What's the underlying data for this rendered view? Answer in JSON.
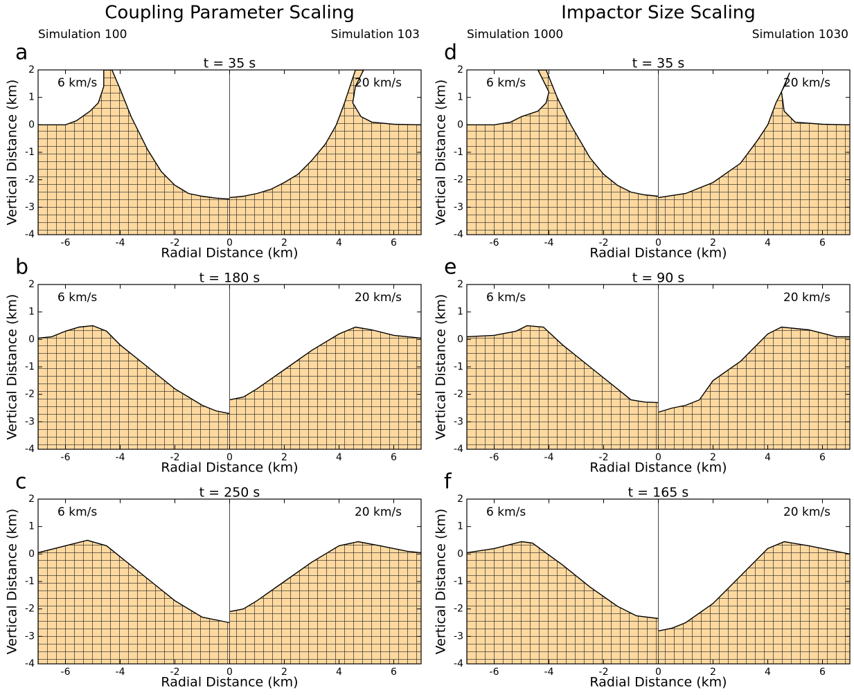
{
  "headings": [
    {
      "title": "Coupling Parameter Scaling",
      "left": "Simulation 100",
      "right": "Simulation 103"
    },
    {
      "title": "Impactor Size Scaling",
      "left": "Simulation 1000",
      "right": "Simulation 1030"
    }
  ],
  "chart_data": [
    {
      "type": "area",
      "panel": "a",
      "title": "t = 35 s",
      "xlabel": "Radial Distance (km)",
      "ylabel": "Vertical Distance (km)",
      "annotations": [
        "6 km/s",
        "20 km/s"
      ],
      "xlim": [
        -7,
        7
      ],
      "ylim": [
        -4,
        2
      ],
      "xticks": [
        -6,
        -4,
        -2,
        0,
        2,
        4,
        6
      ],
      "yticks": [
        -4,
        -3,
        -2,
        -1,
        0,
        1,
        2
      ],
      "series": [
        {
          "color": "#fdd9a0",
          "x": [
            -7,
            -6,
            -5.6,
            -5.1,
            -4.8,
            -4.6,
            -4.6,
            -4.3,
            -4.0,
            -3.6,
            -3.0,
            -2.5,
            -2.0,
            -1.5,
            -1.0,
            -0.5,
            0
          ],
          "values": [
            0,
            0,
            0.15,
            0.5,
            0.8,
            1.4,
            2.0,
            2.0,
            1.3,
            0.3,
            -0.9,
            -1.7,
            -2.2,
            -2.5,
            -2.6,
            -2.67,
            -2.7
          ]
        },
        {
          "color": "#fdd9a0",
          "x": [
            0,
            0.5,
            1,
            1.5,
            2,
            2.5,
            3,
            3.5,
            3.9,
            4.2,
            4.4,
            4.6,
            4.9,
            4.6,
            4.5,
            4.8,
            5.2,
            6,
            7
          ],
          "values": [
            -2.65,
            -2.6,
            -2.5,
            -2.35,
            -2.1,
            -1.8,
            -1.3,
            -0.7,
            0,
            0.8,
            1.4,
            2.0,
            2.0,
            1.4,
            0.8,
            0.3,
            0.1,
            0.02,
            0
          ]
        }
      ]
    },
    {
      "type": "area",
      "panel": "b",
      "title": "t = 180 s",
      "xlabel": "Radial Distance (km)",
      "ylabel": "Vertical Distance (km)",
      "annotations": [
        "6 km/s",
        "20 km/s"
      ],
      "xlim": [
        -7,
        7
      ],
      "ylim": [
        -4,
        2
      ],
      "xticks": [
        -6,
        -4,
        -2,
        0,
        2,
        4,
        6
      ],
      "yticks": [
        -4,
        -3,
        -2,
        -1,
        0,
        1,
        2
      ],
      "series": [
        {
          "color": "#fdd9a0",
          "x": [
            -7,
            -6.5,
            -6,
            -5.5,
            -5,
            -4.5,
            -4,
            -3,
            -2,
            -1,
            -0.5,
            0
          ],
          "values": [
            0.05,
            0.1,
            0.3,
            0.45,
            0.5,
            0.3,
            -0.2,
            -1.0,
            -1.8,
            -2.4,
            -2.6,
            -2.7
          ]
        },
        {
          "color": "#fdd9a0",
          "x": [
            0,
            0.5,
            1,
            2,
            3,
            4,
            4.6,
            5.2,
            6,
            7
          ],
          "values": [
            -2.2,
            -2.1,
            -1.8,
            -1.1,
            -0.4,
            0.2,
            0.45,
            0.35,
            0.15,
            0.05
          ]
        }
      ]
    },
    {
      "type": "area",
      "panel": "c",
      "title": "t = 250 s",
      "xlabel": "Radial Distance (km)",
      "ylabel": "Vertical Distance (km)",
      "annotations": [
        "6 km/s",
        "20 km/s"
      ],
      "xlim": [
        -7,
        7
      ],
      "ylim": [
        -4,
        2
      ],
      "xticks": [
        -6,
        -4,
        -2,
        0,
        2,
        4,
        6
      ],
      "yticks": [
        -4,
        -3,
        -2,
        -1,
        0,
        1,
        2
      ],
      "series": [
        {
          "color": "#fdd9a0",
          "x": [
            -7,
            -6,
            -5.2,
            -4.5,
            -3,
            -2,
            -1,
            -0.5,
            0
          ],
          "values": [
            0.05,
            0.3,
            0.5,
            0.3,
            -0.9,
            -1.7,
            -2.3,
            -2.4,
            -2.5
          ]
        },
        {
          "color": "#fdd9a0",
          "x": [
            0,
            0.5,
            1,
            2,
            3,
            4,
            4.7,
            5.5,
            6.5,
            7
          ],
          "values": [
            -2.1,
            -2.0,
            -1.7,
            -1.0,
            -0.3,
            0.3,
            0.45,
            0.3,
            0.1,
            0.05
          ]
        }
      ]
    },
    {
      "type": "area",
      "panel": "d",
      "title": "t = 35 s",
      "xlabel": "Radial Distance (km)",
      "ylabel": "Vertical Distance (km)",
      "annotations": [
        "6 km/s",
        "20 km/s"
      ],
      "xlim": [
        -7,
        7
      ],
      "ylim": [
        -4,
        2
      ],
      "xticks": [
        -6,
        -4,
        -2,
        0,
        2,
        4,
        6
      ],
      "yticks": [
        -4,
        -3,
        -2,
        -1,
        0,
        1,
        2
      ],
      "series": [
        {
          "color": "#fdd9a0",
          "x": [
            -7,
            -6,
            -5.4,
            -5,
            -4.4,
            -4.1,
            -4.0,
            -4.4,
            -4.1,
            -3.7,
            -3.2,
            -2.5,
            -2,
            -1.5,
            -1,
            -0.5,
            0
          ],
          "values": [
            0,
            0,
            0.1,
            0.3,
            0.5,
            0.8,
            1.2,
            2.0,
            2.0,
            1.0,
            0,
            -1.2,
            -1.8,
            -2.2,
            -2.45,
            -2.55,
            -2.6
          ]
        },
        {
          "color": "#fdd9a0",
          "x": [
            0,
            1,
            2,
            3,
            3.6,
            4,
            4.3,
            4.6,
            4.8,
            4.5,
            4.6,
            5,
            6,
            7
          ],
          "values": [
            -2.65,
            -2.5,
            -2.1,
            -1.4,
            -0.6,
            0,
            0.8,
            1.4,
            1.9,
            1.2,
            0.5,
            0.1,
            0.02,
            0
          ]
        }
      ]
    },
    {
      "type": "area",
      "panel": "e",
      "title": "t = 90 s",
      "xlabel": "Radial Distance (km)",
      "ylabel": "Vertical Distance (km)",
      "annotations": [
        "6 km/s",
        "20 km/s"
      ],
      "xlim": [
        -7,
        7
      ],
      "ylim": [
        -4,
        2
      ],
      "xticks": [
        -6,
        -4,
        -2,
        0,
        2,
        4,
        6
      ],
      "yticks": [
        -4,
        -3,
        -2,
        -1,
        0,
        1,
        2
      ],
      "series": [
        {
          "color": "#fdd9a0",
          "x": [
            -7,
            -6,
            -5.2,
            -4.8,
            -4.2,
            -3.5,
            -2.5,
            -1.5,
            -1,
            -0.5,
            0
          ],
          "values": [
            0.1,
            0.15,
            0.3,
            0.5,
            0.45,
            -0.2,
            -1.0,
            -1.8,
            -2.2,
            -2.28,
            -2.3
          ]
        },
        {
          "color": "#fdd9a0",
          "x": [
            0,
            0.5,
            1,
            1.5,
            2,
            3,
            4,
            4.5,
            5.5,
            6.5,
            7
          ],
          "values": [
            -2.65,
            -2.5,
            -2.4,
            -2.2,
            -1.5,
            -0.8,
            0.2,
            0.45,
            0.35,
            0.1,
            0.1
          ]
        }
      ]
    },
    {
      "type": "area",
      "panel": "f",
      "title": "t = 165 s",
      "xlabel": "Radial Distance (km)",
      "ylabel": "Vertical Distance (km)",
      "annotations": [
        "6 km/s",
        "20 km/s"
      ],
      "xlim": [
        -7,
        7
      ],
      "ylim": [
        -4,
        2
      ],
      "xticks": [
        -6,
        -4,
        -2,
        0,
        2,
        4,
        6
      ],
      "yticks": [
        -4,
        -3,
        -2,
        -1,
        0,
        1,
        2
      ],
      "series": [
        {
          "color": "#fdd9a0",
          "x": [
            -7,
            -6,
            -5,
            -4.6,
            -3.5,
            -2.5,
            -1.5,
            -0.8,
            0
          ],
          "values": [
            0.05,
            0.2,
            0.45,
            0.4,
            -0.4,
            -1.2,
            -1.9,
            -2.25,
            -2.35
          ]
        },
        {
          "color": "#fdd9a0",
          "x": [
            0,
            0.5,
            1,
            2,
            3,
            4,
            4.6,
            5.5,
            6.5,
            7
          ],
          "values": [
            -2.8,
            -2.7,
            -2.5,
            -1.8,
            -0.8,
            0.2,
            0.45,
            0.3,
            0.1,
            0
          ]
        }
      ]
    }
  ]
}
